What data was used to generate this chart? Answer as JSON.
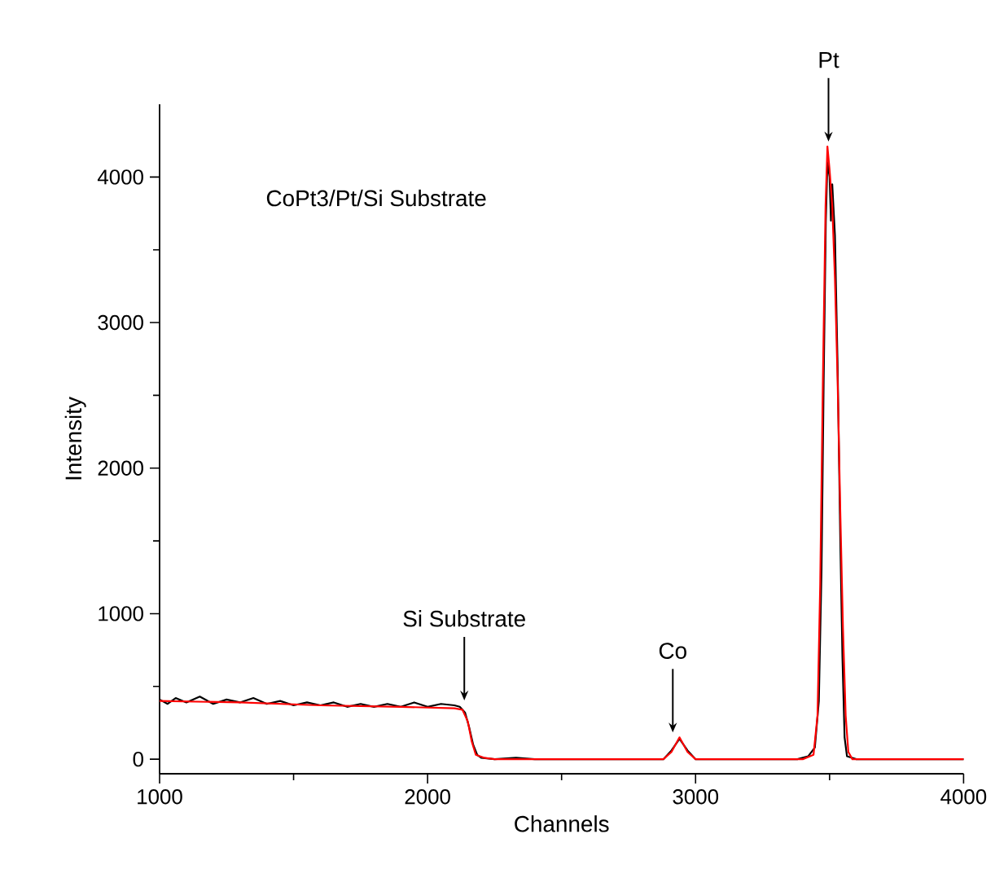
{
  "chart_data": {
    "type": "line",
    "xlabel": "Channels",
    "ylabel": "Intensity",
    "xlim": [
      1000,
      4000
    ],
    "ylim": [
      -100,
      4500
    ],
    "xticks": [
      1000,
      2000,
      3000,
      4000
    ],
    "yticks": [
      0,
      1000,
      2000,
      3000,
      4000
    ],
    "grid": false,
    "marker": "none",
    "line_style": "solid",
    "annotations": [
      "CoPt3/Pt/Si Substrate",
      {
        "text": "Si Substrate",
        "x": 2137,
        "y": 370
      },
      {
        "text": "Co",
        "x": 2915,
        "y": 150
      },
      {
        "text": "Pt",
        "x": 3496,
        "y": 4210
      }
    ],
    "series": [
      {
        "color": "#000000",
        "x": [
          1000,
          1030,
          1060,
          1100,
          1150,
          1200,
          1250,
          1300,
          1350,
          1400,
          1450,
          1500,
          1550,
          1600,
          1650,
          1700,
          1750,
          1800,
          1850,
          1900,
          1950,
          2000,
          2050,
          2100,
          2120,
          2140,
          2155,
          2170,
          2185,
          2200,
          2250,
          2330,
          2400,
          2880,
          2910,
          2940,
          2970,
          3000,
          3380,
          3420,
          3445,
          3460,
          3470,
          3478,
          3486,
          3492,
          3500,
          3505,
          3510,
          3520,
          3530,
          3540,
          3548,
          3556,
          3565,
          3600,
          4000
        ],
        "values": [
          410,
          380,
          420,
          390,
          430,
          380,
          410,
          390,
          420,
          380,
          400,
          370,
          390,
          370,
          390,
          360,
          380,
          360,
          380,
          360,
          390,
          360,
          380,
          370,
          360,
          320,
          220,
          100,
          30,
          10,
          0,
          10,
          0,
          0,
          60,
          140,
          60,
          0,
          0,
          20,
          80,
          400,
          1300,
          2600,
          3700,
          4100,
          4000,
          3700,
          3950,
          3600,
          2700,
          1500,
          700,
          150,
          20,
          0,
          0
        ]
      },
      {
        "color": "#ff0000",
        "x": [
          1000,
          1300,
          1600,
          1900,
          2100,
          2130,
          2150,
          2165,
          2180,
          2210,
          2250,
          2880,
          2910,
          2940,
          2970,
          3000,
          3400,
          3440,
          3455,
          3465,
          3475,
          3485,
          3492,
          3500,
          3510,
          3520,
          3530,
          3540,
          3550,
          3560,
          3570,
          3585,
          4000
        ],
        "values": [
          400,
          390,
          370,
          360,
          350,
          340,
          260,
          120,
          30,
          10,
          0,
          0,
          50,
          150,
          50,
          0,
          0,
          30,
          300,
          1200,
          2600,
          3800,
          4210,
          4050,
          3800,
          3300,
          2600,
          1700,
          900,
          300,
          50,
          0,
          0
        ]
      }
    ]
  }
}
